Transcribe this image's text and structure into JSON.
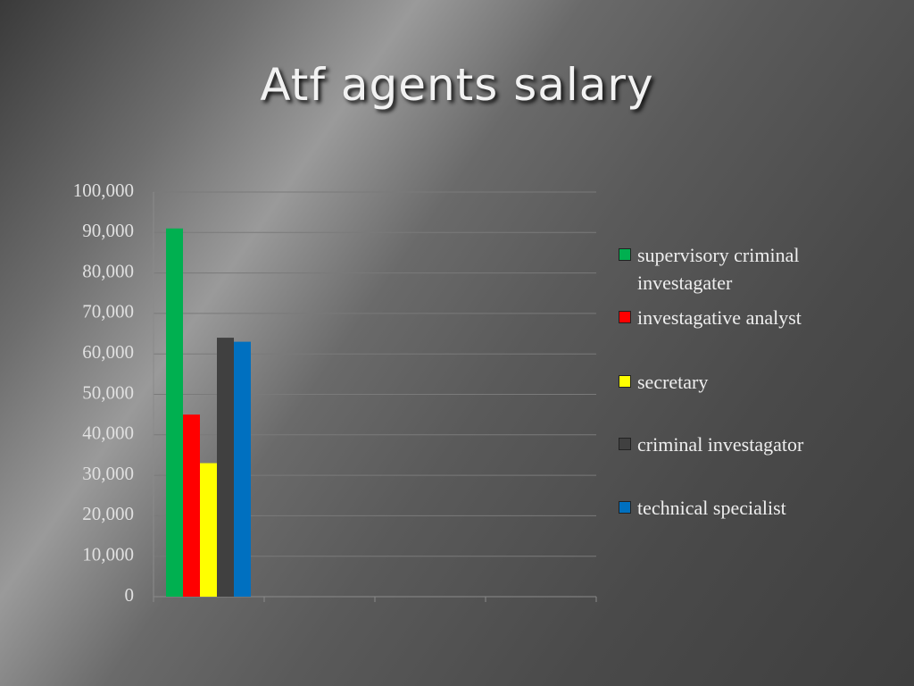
{
  "chart_data": {
    "type": "bar",
    "title": "Atf agents salary",
    "categories": [
      null,
      null,
      null,
      null
    ],
    "series": [
      {
        "name": "supervisory criminal investagater",
        "color": "#00b050",
        "values": [
          91000,
          null,
          null,
          null
        ]
      },
      {
        "name": "investagative analyst",
        "color": "#ff0000",
        "values": [
          45000,
          null,
          null,
          null
        ]
      },
      {
        "name": "secretary",
        "color": "#ffff00",
        "values": [
          33000,
          null,
          null,
          null
        ]
      },
      {
        "name": "criminal investagator",
        "color": "#404040",
        "values": [
          64000,
          null,
          null,
          null
        ]
      },
      {
        "name": "technical specialist",
        "color": "#0070c0",
        "values": [
          63000,
          null,
          null,
          null
        ]
      }
    ],
    "ylim": [
      0,
      100000
    ],
    "yticks": [
      0,
      {
        "value": 10000,
        "label": "10,000"
      },
      {
        "value": 20000,
        "label": "20,000"
      },
      {
        "value": 30000,
        "label": "30,000"
      },
      {
        "value": 40000,
        "label": "40,000"
      },
      {
        "value": 50000,
        "label": "50,000"
      },
      {
        "value": 60000,
        "label": "60,000"
      },
      {
        "value": 70000,
        "label": "70,000"
      },
      {
        "value": 80000,
        "label": "80,000"
      },
      {
        "value": 90000,
        "label": "90,000"
      },
      {
        "value": 100000,
        "label": "100,000"
      }
    ],
    "grid": true,
    "legend": "right"
  }
}
